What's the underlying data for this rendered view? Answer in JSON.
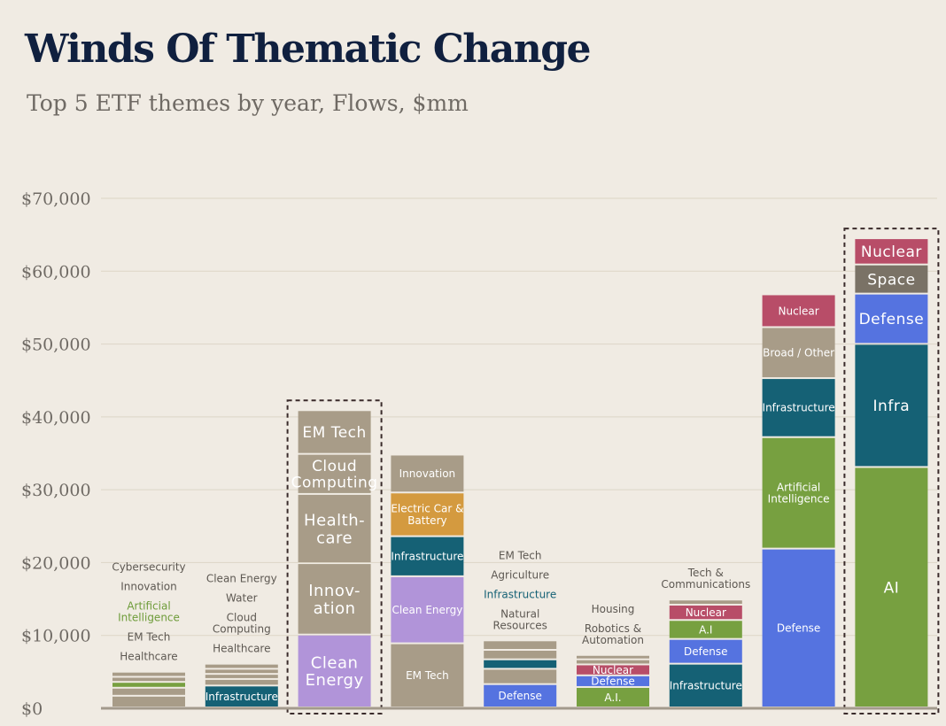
{
  "title": "Winds Of Thematic Change",
  "subtitle": "Top 5 ETF themes by year, Flows, $mm",
  "colors": {
    "background": "#f0ebe3",
    "tan": "#a89c88",
    "green": "#77a040",
    "teal": "#156175",
    "blue": "#5573e0",
    "lavender": "#b194d9",
    "orange": "#d49a3f",
    "crimson": "#b84d68",
    "gray": "#7a7266",
    "text_gray": "#5d5852",
    "text_green": "#6e9c3a",
    "text_teal": "#156175",
    "dashed_outline": "#3a2b2b"
  },
  "chart_data": {
    "type": "bar",
    "stacked": true,
    "title": "Winds Of Thematic Change",
    "subtitle": "Top 5 ETF themes by year, Flows, $mm",
    "ylim": [
      0,
      70000
    ],
    "yticks": [
      0,
      10000,
      20000,
      30000,
      40000,
      50000,
      60000,
      70000
    ],
    "ytick_labels": [
      "$0",
      "$10,000",
      "$20,000",
      "$30,000",
      "$40,000",
      "$50,000",
      "$60,000",
      "$70,000"
    ],
    "grid": true,
    "bars": [
      {
        "segments": [
          {
            "name": "Healthcare",
            "value": 1600,
            "color": "tan"
          },
          {
            "name": "EM Tech",
            "value": 1100,
            "color": "tan"
          },
          {
            "name": "Artificial Intelligence",
            "value": 800,
            "color": "green"
          },
          {
            "name": "Innovation",
            "value": 700,
            "color": "tan"
          },
          {
            "name": "Cybersecurity",
            "value": 700,
            "color": "tan"
          }
        ],
        "outside_labels": [
          {
            "text": "Healthcare",
            "color": "text_gray"
          },
          {
            "text": "EM Tech",
            "color": "text_gray"
          },
          {
            "text": "Artificial Intelligence",
            "color": "text_green"
          },
          {
            "text": "Innovation",
            "color": "text_gray"
          },
          {
            "text": "Cybersecurity",
            "color": "text_gray"
          }
        ]
      },
      {
        "segments": [
          {
            "name": "Infrastructure",
            "value": 3000,
            "color": "teal",
            "label": "Infrastructure"
          },
          {
            "name": "Healthcare",
            "value": 900,
            "color": "tan"
          },
          {
            "name": "Cloud Computing",
            "value": 700,
            "color": "tan"
          },
          {
            "name": "Water",
            "value": 700,
            "color": "tan"
          },
          {
            "name": "Clean Energy",
            "value": 700,
            "color": "tan"
          }
        ],
        "outside_labels": [
          {
            "text": "Healthcare",
            "color": "text_gray"
          },
          {
            "text": "Cloud Computing",
            "color": "text_gray"
          },
          {
            "text": "Water",
            "color": "text_gray"
          },
          {
            "text": "Clean Energy",
            "color": "text_gray"
          }
        ]
      },
      {
        "highlight": true,
        "segments": [
          {
            "name": "Clean Energy",
            "value": 10000,
            "color": "lavender",
            "label": "Clean Energy"
          },
          {
            "name": "Innovation",
            "value": 9800,
            "color": "tan",
            "label": "Innov- ation"
          },
          {
            "name": "Healthcare",
            "value": 9500,
            "color": "tan",
            "label": "Health- care"
          },
          {
            "name": "Cloud Computing",
            "value": 5500,
            "color": "tan",
            "label": "Cloud Computing"
          },
          {
            "name": "EM Tech",
            "value": 6000,
            "color": "tan",
            "label": "EM Tech"
          }
        ]
      },
      {
        "segments": [
          {
            "name": "EM Tech",
            "value": 8800,
            "color": "tan",
            "label": "EM Tech"
          },
          {
            "name": "Clean Energy",
            "value": 9200,
            "color": "lavender",
            "label": "Clean Energy"
          },
          {
            "name": "Infrastructure",
            "value": 5500,
            "color": "teal",
            "label": "Infrastructure"
          },
          {
            "name": "Electric Car & Battery",
            "value": 6000,
            "color": "orange",
            "label": "Electric Car & Battery"
          },
          {
            "name": "Innovation",
            "value": 5200,
            "color": "tan",
            "label": "Innovation"
          }
        ]
      },
      {
        "segments": [
          {
            "name": "Defense",
            "value": 3200,
            "color": "blue",
            "label": "Defense"
          },
          {
            "name": "Natural Resources",
            "value": 2100,
            "color": "tan"
          },
          {
            "name": "Infrastructure",
            "value": 1300,
            "color": "teal"
          },
          {
            "name": "Agriculture",
            "value": 1300,
            "color": "tan"
          },
          {
            "name": "EM Tech",
            "value": 1300,
            "color": "tan"
          }
        ],
        "outside_labels": [
          {
            "text": "Natural Resources",
            "color": "text_gray"
          },
          {
            "text": "Infrastructure",
            "color": "text_teal"
          },
          {
            "text": "Agriculture",
            "color": "text_gray"
          },
          {
            "text": "EM Tech",
            "color": "text_gray"
          }
        ]
      },
      {
        "segments": [
          {
            "name": "A.I.",
            "value": 2800,
            "color": "green",
            "label": "A.I."
          },
          {
            "name": "Defense",
            "value": 1600,
            "color": "blue",
            "label": "Defense"
          },
          {
            "name": "Nuclear",
            "value": 1500,
            "color": "crimson",
            "label": "Nuclear"
          },
          {
            "name": "Robotics & Automation",
            "value": 700,
            "color": "tan"
          },
          {
            "name": "Housing",
            "value": 600,
            "color": "tan"
          }
        ],
        "outside_labels": [
          {
            "text": "Robotics & Automation",
            "color": "text_gray"
          },
          {
            "text": "Housing",
            "color": "text_gray"
          }
        ]
      },
      {
        "segments": [
          {
            "name": "Infrastructure",
            "value": 6000,
            "color": "teal",
            "label": "Infrastructure"
          },
          {
            "name": "Defense",
            "value": 3400,
            "color": "blue",
            "label": "Defense"
          },
          {
            "name": "A.I",
            "value": 2600,
            "color": "green",
            "label": "A.I"
          },
          {
            "name": "Nuclear",
            "value": 2100,
            "color": "crimson",
            "label": "Nuclear"
          },
          {
            "name": "Tech & Communications",
            "value": 700,
            "color": "tan"
          }
        ],
        "outside_labels": [
          {
            "text": "Tech & Communications",
            "color": "text_gray"
          }
        ]
      },
      {
        "segments": [
          {
            "name": "Defense",
            "value": 21800,
            "color": "blue",
            "label": "Defense"
          },
          {
            "name": "Artificial Intelligence",
            "value": 15300,
            "color": "green",
            "label": "Artificial Intelligence"
          },
          {
            "name": "Infrastructure",
            "value": 8100,
            "color": "teal",
            "label": "Infrastructure"
          },
          {
            "name": "Broad / Other",
            "value": 7000,
            "color": "tan",
            "label": "Broad / Other"
          },
          {
            "name": "Nuclear",
            "value": 4500,
            "color": "crimson",
            "label": "Nuclear"
          }
        ]
      },
      {
        "highlight": true,
        "segments": [
          {
            "name": "AI",
            "value": 33000,
            "color": "green",
            "label": "AI"
          },
          {
            "name": "Infra",
            "value": 16900,
            "color": "teal",
            "label": "Infra"
          },
          {
            "name": "Defense",
            "value": 6900,
            "color": "blue",
            "label": "Defense"
          },
          {
            "name": "Space",
            "value": 4000,
            "color": "gray",
            "label": "Space"
          },
          {
            "name": "Nuclear",
            "value": 3600,
            "color": "crimson",
            "label": "Nuclear"
          }
        ]
      }
    ]
  }
}
